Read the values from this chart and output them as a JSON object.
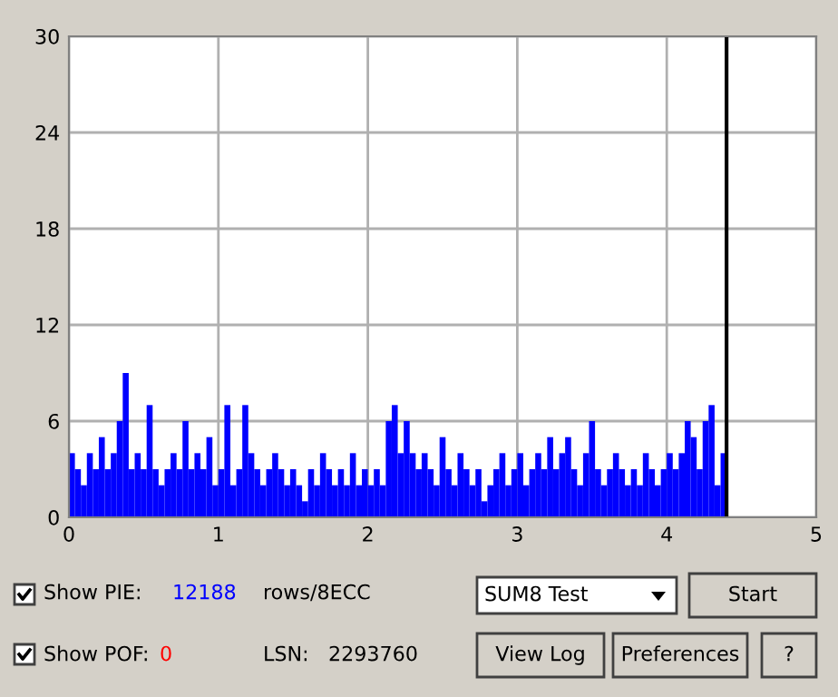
{
  "chart_data": {
    "type": "bar",
    "x": [
      0.0,
      0.04,
      0.08,
      0.12,
      0.16,
      0.2,
      0.24,
      0.28,
      0.32,
      0.36,
      0.4,
      0.44,
      0.48,
      0.52,
      0.56,
      0.6,
      0.64,
      0.68,
      0.72,
      0.76,
      0.8,
      0.84,
      0.88,
      0.92,
      0.96,
      1.0,
      1.04,
      1.08,
      1.12,
      1.16,
      1.2,
      1.24,
      1.28,
      1.32,
      1.36,
      1.4,
      1.44,
      1.48,
      1.52,
      1.56,
      1.6,
      1.64,
      1.68,
      1.72,
      1.76,
      1.8,
      1.84,
      1.88,
      1.92,
      1.96,
      2.0,
      2.04,
      2.08,
      2.12,
      2.16,
      2.2,
      2.24,
      2.28,
      2.32,
      2.36,
      2.4,
      2.44,
      2.48,
      2.52,
      2.56,
      2.6,
      2.64,
      2.68,
      2.72,
      2.76,
      2.8,
      2.84,
      2.88,
      2.92,
      2.96,
      3.0,
      3.04,
      3.08,
      3.12,
      3.16,
      3.2,
      3.24,
      3.28,
      3.32,
      3.36,
      3.4,
      3.44,
      3.48,
      3.52,
      3.56,
      3.6,
      3.64,
      3.68,
      3.72,
      3.76,
      3.8,
      3.84,
      3.88,
      3.92,
      3.96,
      4.0,
      4.04,
      4.08,
      4.12,
      4.16,
      4.2,
      4.24,
      4.28,
      4.32,
      4.36
    ],
    "values": [
      4,
      3,
      2,
      4,
      3,
      5,
      3,
      4,
      6,
      9,
      3,
      4,
      3,
      7,
      3,
      2,
      3,
      4,
      3,
      6,
      3,
      4,
      3,
      5,
      2,
      3,
      7,
      2,
      3,
      7,
      4,
      3,
      2,
      3,
      4,
      3,
      2,
      3,
      2,
      1,
      3,
      2,
      4,
      3,
      2,
      3,
      2,
      4,
      2,
      3,
      2,
      3,
      2,
      6,
      7,
      4,
      6,
      4,
      3,
      4,
      3,
      2,
      5,
      3,
      2,
      4,
      3,
      2,
      3,
      1,
      2,
      3,
      4,
      2,
      3,
      4,
      2,
      3,
      4,
      3,
      5,
      3,
      4,
      5,
      3,
      2,
      4,
      6,
      3,
      2,
      3,
      4,
      3,
      2,
      3,
      2,
      4,
      3,
      2,
      3,
      4,
      3,
      4,
      6,
      5,
      3,
      6,
      7,
      2,
      4
    ],
    "color": "#0000ff",
    "xlim": [
      0,
      5
    ],
    "ylim": [
      0,
      30
    ],
    "xticks": [
      0,
      1,
      2,
      3,
      4,
      5
    ],
    "yticks": [
      0,
      6,
      12,
      18,
      24,
      30
    ],
    "grid": true,
    "ref_lines": [
      {
        "axis": "x",
        "value": 4.4,
        "color": "#000000"
      }
    ],
    "annotations": [
      "Show PIE:",
      "12188",
      "rows/8ECC",
      "Show POF:",
      "0",
      "LSN:",
      "2293760",
      "SUM8 Test",
      "Start",
      "View Log",
      "Preferences",
      "?"
    ]
  }
}
